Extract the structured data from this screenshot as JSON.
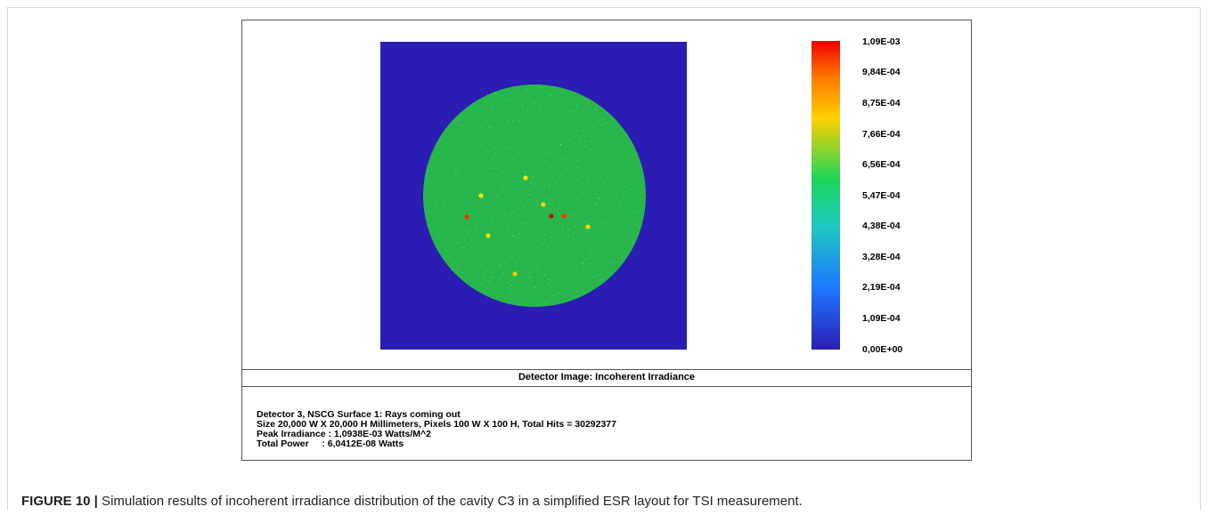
{
  "chart_data": {
    "type": "heatmap",
    "title": "Detector Image: Incoherent Irradiance",
    "colorbar": {
      "colors": [
        "#2b1db4",
        "#1ea0ff",
        "#1cd65a",
        "#ffd000",
        "#ee0000"
      ],
      "ticks": [
        "1,09E-03",
        "9,84E-04",
        "8,75E-04",
        "7,66E-04",
        "6,56E-04",
        "5,47E-04",
        "4,38E-04",
        "3,28E-04",
        "2,19E-04",
        "1,09E-04",
        "0,00E+00"
      ],
      "range": [
        0,
        0.00109
      ]
    },
    "background_color": "#2b1db4",
    "spot_color": "#26b64c",
    "info": [
      "Detector 3, NSCG Surface 1: Rays coming out",
      "Size 20,000 W X 20,000 H Millimeters, Pixels 100 W X 100 H, Total Hits = 30292377",
      "Peak Irradiance : 1,0938E-03 Watts/M^2",
      "Total Power     : 6,0412E-08 Watts"
    ]
  },
  "caption": {
    "label": "FIGURE 10 |",
    "text": " Simulation results of incoherent irradiance distribution of the cavity C3 in a simplified ESR layout for TSI measurement."
  }
}
